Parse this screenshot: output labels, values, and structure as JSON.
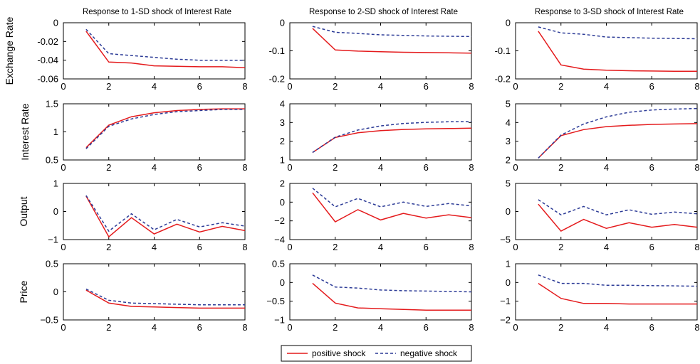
{
  "legend": {
    "positive": "positive shock",
    "negative": "negative shock"
  },
  "colors": {
    "positive": "#e41a1c",
    "negative": "#2b3a96"
  },
  "col_titles": [
    "Response to 1-SD shock of Interest Rate",
    "Response to 2-SD shock of Interest Rate",
    "Response to 3-SD shock of Interest Rate"
  ],
  "row_labels": [
    "Exchange Rate",
    "Interest Rate",
    "Output",
    "Price"
  ],
  "chart_data": [
    {
      "type": "line",
      "row": 0,
      "col": 0,
      "title": "Response to 1-SD shock of Interest Rate",
      "ylabel": "Exchange Rate",
      "xlim": [
        0,
        8
      ],
      "ylim": [
        -0.06,
        0
      ],
      "xticks": [
        0,
        2,
        4,
        6,
        8
      ],
      "yticks": [
        0,
        -0.02,
        -0.04,
        -0.06
      ],
      "ytick_labels": [
        "0",
        "-0.02",
        "-0.04",
        "-0.06"
      ],
      "x": [
        1,
        2,
        3,
        4,
        5,
        6,
        7,
        8
      ],
      "series": [
        {
          "name": "positive shock",
          "values": [
            -0.009,
            -0.042,
            -0.043,
            -0.046,
            -0.0465,
            -0.047,
            -0.047,
            -0.048
          ]
        },
        {
          "name": "negative shock",
          "values": [
            -0.007,
            -0.033,
            -0.035,
            -0.037,
            -0.039,
            -0.04,
            -0.04,
            -0.04
          ]
        }
      ]
    },
    {
      "type": "line",
      "row": 0,
      "col": 1,
      "title": "Response to 2-SD shock of Interest Rate",
      "ylabel": "",
      "xlim": [
        0,
        8
      ],
      "ylim": [
        -0.2,
        0
      ],
      "xticks": [
        0,
        2,
        4,
        6,
        8
      ],
      "yticks": [
        0,
        -0.1,
        -0.2
      ],
      "ytick_labels": [
        "0",
        "-0.1",
        "-0.2"
      ],
      "x": [
        1,
        2,
        3,
        4,
        5,
        6,
        7,
        8
      ],
      "series": [
        {
          "name": "positive shock",
          "values": [
            -0.02,
            -0.097,
            -0.101,
            -0.103,
            -0.105,
            -0.106,
            -0.107,
            -0.108
          ]
        },
        {
          "name": "negative shock",
          "values": [
            -0.013,
            -0.034,
            -0.038,
            -0.043,
            -0.045,
            -0.047,
            -0.048,
            -0.049
          ]
        }
      ]
    },
    {
      "type": "line",
      "row": 0,
      "col": 2,
      "title": "Response to 3-SD shock of Interest Rate",
      "ylabel": "",
      "xlim": [
        0,
        8
      ],
      "ylim": [
        -0.2,
        0
      ],
      "xticks": [
        0,
        2,
        4,
        6,
        8
      ],
      "yticks": [
        0,
        -0.1,
        -0.2
      ],
      "ytick_labels": [
        "0",
        "-0.1",
        "-0.2"
      ],
      "x": [
        1,
        2,
        3,
        4,
        5,
        6,
        7,
        8
      ],
      "series": [
        {
          "name": "positive shock",
          "values": [
            -0.03,
            -0.15,
            -0.165,
            -0.169,
            -0.171,
            -0.172,
            -0.173,
            -0.173
          ]
        },
        {
          "name": "negative shock",
          "values": [
            -0.015,
            -0.036,
            -0.041,
            -0.051,
            -0.053,
            -0.055,
            -0.056,
            -0.057
          ]
        }
      ]
    },
    {
      "type": "line",
      "row": 1,
      "col": 0,
      "title": "",
      "ylabel": "Interest Rate",
      "xlim": [
        0,
        8
      ],
      "ylim": [
        0.5,
        1.5
      ],
      "xticks": [
        0,
        2,
        4,
        6,
        8
      ],
      "yticks": [
        1.5,
        1,
        0.5
      ],
      "ytick_labels": [
        "1.5",
        "1",
        "0.5"
      ],
      "x": [
        1,
        2,
        3,
        4,
        5,
        6,
        7,
        8
      ],
      "series": [
        {
          "name": "positive shock",
          "values": [
            0.72,
            1.12,
            1.27,
            1.34,
            1.38,
            1.4,
            1.41,
            1.41
          ]
        },
        {
          "name": "negative shock",
          "values": [
            0.7,
            1.1,
            1.23,
            1.31,
            1.36,
            1.38,
            1.4,
            1.4
          ]
        }
      ]
    },
    {
      "type": "line",
      "row": 1,
      "col": 1,
      "title": "",
      "ylabel": "",
      "xlim": [
        0,
        8
      ],
      "ylim": [
        1,
        4
      ],
      "xticks": [
        0,
        2,
        4,
        6,
        8
      ],
      "yticks": [
        4,
        3,
        2,
        1
      ],
      "ytick_labels": [
        "4",
        "3",
        "2",
        "1"
      ],
      "x": [
        1,
        2,
        3,
        4,
        5,
        6,
        7,
        8
      ],
      "series": [
        {
          "name": "positive shock",
          "values": [
            1.4,
            2.2,
            2.45,
            2.57,
            2.63,
            2.66,
            2.68,
            2.7
          ]
        },
        {
          "name": "negative shock",
          "values": [
            1.4,
            2.22,
            2.6,
            2.82,
            2.95,
            3.01,
            3.04,
            3.05
          ]
        }
      ]
    },
    {
      "type": "line",
      "row": 1,
      "col": 2,
      "title": "",
      "ylabel": "",
      "xlim": [
        0,
        8
      ],
      "ylim": [
        2,
        5
      ],
      "xticks": [
        0,
        2,
        4,
        6,
        8
      ],
      "yticks": [
        5,
        4,
        3,
        2
      ],
      "ytick_labels": [
        "5",
        "4",
        "3",
        "2"
      ],
      "x": [
        1,
        2,
        3,
        4,
        5,
        6,
        7,
        8
      ],
      "series": [
        {
          "name": "positive shock",
          "values": [
            2.1,
            3.3,
            3.62,
            3.78,
            3.85,
            3.9,
            3.92,
            3.94
          ]
        },
        {
          "name": "negative shock",
          "values": [
            2.1,
            3.33,
            3.92,
            4.3,
            4.55,
            4.67,
            4.72,
            4.75
          ]
        }
      ]
    },
    {
      "type": "line",
      "row": 2,
      "col": 0,
      "title": "",
      "ylabel": "Output",
      "xlim": [
        0,
        8
      ],
      "ylim": [
        -1,
        1
      ],
      "xticks": [
        0,
        2,
        4,
        6,
        8
      ],
      "yticks": [
        1,
        0,
        -1
      ],
      "ytick_labels": [
        "1",
        "0",
        "−1"
      ],
      "x": [
        1,
        2,
        3,
        4,
        5,
        6,
        7,
        8
      ],
      "series": [
        {
          "name": "positive shock",
          "values": [
            0.55,
            -0.9,
            -0.22,
            -0.8,
            -0.45,
            -0.73,
            -0.53,
            -0.68
          ]
        },
        {
          "name": "negative shock",
          "values": [
            0.57,
            -0.7,
            -0.08,
            -0.65,
            -0.28,
            -0.55,
            -0.4,
            -0.52
          ]
        }
      ]
    },
    {
      "type": "line",
      "row": 2,
      "col": 1,
      "title": "",
      "ylabel": "",
      "xlim": [
        0,
        8
      ],
      "ylim": [
        -4,
        2
      ],
      "xticks": [
        0,
        2,
        4,
        6,
        8
      ],
      "yticks": [
        2,
        0,
        -2,
        -4
      ],
      "ytick_labels": [
        "2",
        "0",
        "−2",
        "−4"
      ],
      "x": [
        1,
        2,
        3,
        4,
        5,
        6,
        7,
        8
      ],
      "series": [
        {
          "name": "positive shock",
          "values": [
            1.0,
            -2.1,
            -0.8,
            -1.9,
            -1.2,
            -1.7,
            -1.35,
            -1.65
          ]
        },
        {
          "name": "negative shock",
          "values": [
            1.5,
            -0.5,
            0.4,
            -0.5,
            0.0,
            -0.45,
            -0.15,
            -0.4
          ]
        }
      ]
    },
    {
      "type": "line",
      "row": 2,
      "col": 2,
      "title": "",
      "ylabel": "",
      "xlim": [
        0,
        8
      ],
      "ylim": [
        -5,
        5
      ],
      "xticks": [
        0,
        2,
        4,
        6,
        8
      ],
      "yticks": [
        5,
        0,
        -5
      ],
      "ytick_labels": [
        "5",
        "0",
        "−5"
      ],
      "x": [
        1,
        2,
        3,
        4,
        5,
        6,
        7,
        8
      ],
      "series": [
        {
          "name": "positive shock",
          "values": [
            1.3,
            -3.5,
            -1.4,
            -3.0,
            -2.0,
            -2.8,
            -2.3,
            -2.8
          ]
        },
        {
          "name": "negative shock",
          "values": [
            2.1,
            -0.6,
            0.9,
            -0.6,
            0.3,
            -0.5,
            -0.1,
            -0.4
          ]
        }
      ]
    },
    {
      "type": "line",
      "row": 3,
      "col": 0,
      "title": "",
      "ylabel": "Price",
      "xlim": [
        0,
        8
      ],
      "ylim": [
        -0.5,
        0.5
      ],
      "xticks": [
        0,
        2,
        4,
        6,
        8
      ],
      "yticks": [
        0.5,
        0,
        -0.5
      ],
      "ytick_labels": [
        "0.5",
        "0",
        "−0.5"
      ],
      "x": [
        1,
        2,
        3,
        4,
        5,
        6,
        7,
        8
      ],
      "series": [
        {
          "name": "positive shock",
          "values": [
            0.03,
            -0.2,
            -0.26,
            -0.27,
            -0.28,
            -0.29,
            -0.29,
            -0.29
          ]
        },
        {
          "name": "negative shock",
          "values": [
            0.05,
            -0.15,
            -0.2,
            -0.21,
            -0.22,
            -0.23,
            -0.23,
            -0.23
          ]
        }
      ]
    },
    {
      "type": "line",
      "row": 3,
      "col": 1,
      "title": "",
      "ylabel": "",
      "xlim": [
        0,
        8
      ],
      "ylim": [
        -1,
        0.5
      ],
      "xticks": [
        0,
        2,
        4,
        6,
        8
      ],
      "yticks": [
        0.5,
        0,
        -0.5,
        -1
      ],
      "ytick_labels": [
        "0.5",
        "0",
        "−0.5",
        "−1"
      ],
      "x": [
        1,
        2,
        3,
        4,
        5,
        6,
        7,
        8
      ],
      "series": [
        {
          "name": "positive shock",
          "values": [
            -0.02,
            -0.55,
            -0.68,
            -0.7,
            -0.72,
            -0.74,
            -0.74,
            -0.74
          ]
        },
        {
          "name": "negative shock",
          "values": [
            0.2,
            -0.12,
            -0.15,
            -0.2,
            -0.22,
            -0.23,
            -0.24,
            -0.25
          ]
        }
      ]
    },
    {
      "type": "line",
      "row": 3,
      "col": 2,
      "title": "",
      "ylabel": "",
      "xlim": [
        0,
        8
      ],
      "ylim": [
        -2,
        1
      ],
      "xticks": [
        0,
        2,
        4,
        6,
        8
      ],
      "yticks": [
        1,
        0,
        -1,
        -2
      ],
      "ytick_labels": [
        "1",
        "0",
        "−1",
        "−2"
      ],
      "x": [
        1,
        2,
        3,
        4,
        5,
        6,
        7,
        8
      ],
      "series": [
        {
          "name": "positive shock",
          "values": [
            -0.05,
            -0.85,
            -1.12,
            -1.12,
            -1.15,
            -1.15,
            -1.15,
            -1.15
          ]
        },
        {
          "name": "negative shock",
          "values": [
            0.4,
            -0.05,
            -0.05,
            -0.15,
            -0.15,
            -0.17,
            -0.18,
            -0.2
          ]
        }
      ]
    }
  ]
}
